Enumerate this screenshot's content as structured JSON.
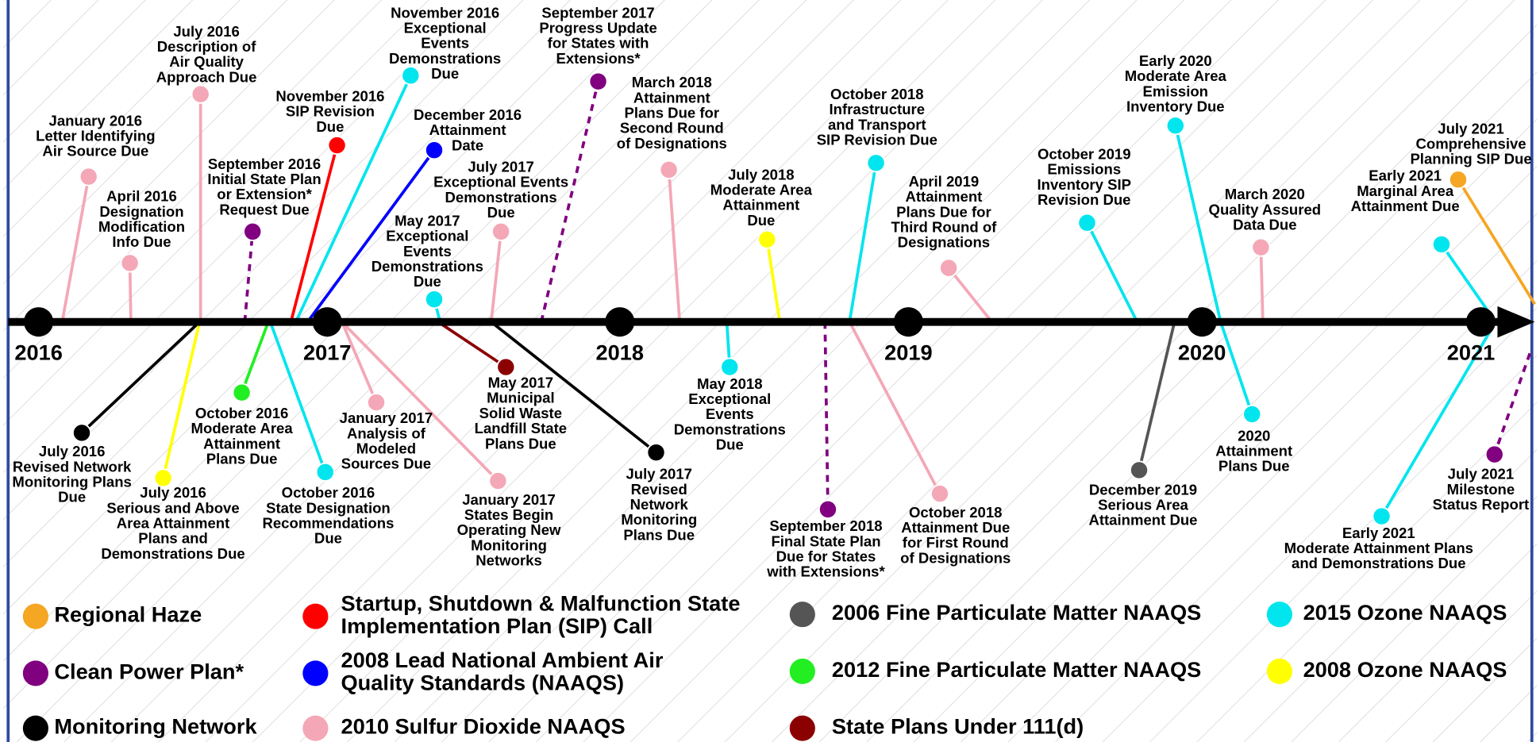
{
  "years": [
    "2016",
    "2017",
    "2018",
    "2019",
    "2020",
    "2021"
  ],
  "events": [
    {
      "lines": [
        "January 2016",
        "Letter Identifying",
        "Air Source Due"
      ],
      "color": "#f4a7b6"
    },
    {
      "lines": [
        "April 2016",
        "Designation",
        "Modification",
        "Info Due"
      ],
      "color": "#f4a7b6"
    },
    {
      "lines": [
        "July 2016",
        "Description of",
        "Air Quality",
        "Approach Due"
      ],
      "color": "#f4a7b6"
    },
    {
      "lines": [
        "September 2016",
        "Initial State Plan",
        "or Extension*",
        "Request Due"
      ],
      "color": "#800080"
    },
    {
      "lines": [
        "November 2016",
        "SIP Revision",
        "Due"
      ],
      "color": "#ff0000"
    },
    {
      "lines": [
        "November 2016",
        "Exceptional",
        "Events",
        "Demonstrations",
        "Due"
      ],
      "color": "#00e5ee"
    },
    {
      "lines": [
        "December 2016",
        "Attainment",
        "Date"
      ],
      "color": "#0000ff"
    },
    {
      "lines": [
        "May 2017",
        "Exceptional",
        "Events",
        "Demonstrations",
        "Due"
      ],
      "color": "#00e5ee"
    },
    {
      "lines": [
        "July 2017",
        "Exceptional Events",
        "Demonstrations",
        "Due"
      ],
      "color": "#f4a7b6"
    },
    {
      "lines": [
        "September 2017",
        "Progress Update",
        "for States with",
        "Extensions*"
      ],
      "color": "#800080"
    },
    {
      "lines": [
        "March 2018",
        "Attainment",
        "Plans Due for",
        "Second Round",
        "of Designations"
      ],
      "color": "#f4a7b6"
    },
    {
      "lines": [
        "July 2018",
        "Moderate Area",
        "Attainment",
        "Due"
      ],
      "color": "#ffff00"
    },
    {
      "lines": [
        "October 2018",
        "Infrastructure",
        "and Transport",
        "SIP Revision Due"
      ],
      "color": "#00e5ee"
    },
    {
      "lines": [
        "April 2019",
        "Attainment",
        "Plans Due for",
        "Third Round of",
        "Designations"
      ],
      "color": "#f4a7b6"
    },
    {
      "lines": [
        "October 2019",
        "Emissions",
        "Inventory SIP",
        "Revision Due"
      ],
      "color": "#00e5ee"
    },
    {
      "lines": [
        "Early 2020",
        "Moderate Area",
        "Emission",
        "Inventory Due"
      ],
      "color": "#00e5ee"
    },
    {
      "lines": [
        "March 2020",
        "Quality Assured",
        "Data Due"
      ],
      "color": "#f4a7b6"
    },
    {
      "lines": [
        "Early 2021",
        "Marginal Area",
        "Attainment Due"
      ],
      "color": "#00e5ee"
    },
    {
      "lines": [
        "July 2021",
        "Comprehensive",
        "Planning SIP Due"
      ],
      "color": "#f5a623"
    },
    {
      "lines": [
        "July 2016",
        "Revised Network",
        "Monitoring Plans",
        "Due"
      ],
      "color": "#000000"
    },
    {
      "lines": [
        "July 2016",
        "Serious and Above",
        "Area Attainment",
        "Plans and",
        "Demonstrations Due"
      ],
      "color": "#ffff00"
    },
    {
      "lines": [
        "October 2016",
        "Moderate Area",
        "Attainment",
        "Plans Due"
      ],
      "color": "#22ee22"
    },
    {
      "lines": [
        "October 2016",
        "State Designation",
        "Recommendations",
        "Due"
      ],
      "color": "#00e5ee"
    },
    {
      "lines": [
        "January 2017",
        "Analysis of",
        "Modeled",
        "Sources Due"
      ],
      "color": "#f4a7b6"
    },
    {
      "lines": [
        "January 2017",
        "States Begin",
        "Operating New",
        "Monitoring",
        "Networks"
      ],
      "color": "#f4a7b6"
    },
    {
      "lines": [
        "May 2017",
        "Municipal",
        "Solid Waste",
        "Landfill State",
        "Plans Due"
      ],
      "color": "#8b0000"
    },
    {
      "lines": [
        "July 2017",
        "Revised",
        "Network",
        "Monitoring",
        "Plans Due"
      ],
      "color": "#000000"
    },
    {
      "lines": [
        "May 2018",
        "Exceptional",
        "Events",
        "Demonstrations",
        "Due"
      ],
      "color": "#00e5ee"
    },
    {
      "lines": [
        "September 2018",
        "Final State Plan",
        "Due for States",
        "with Extensions*"
      ],
      "color": "#800080"
    },
    {
      "lines": [
        "October 2018",
        "Attainment Due",
        "for First Round",
        "of Designations"
      ],
      "color": "#f4a7b6"
    },
    {
      "lines": [
        "December 2019",
        "Serious Area",
        "Attainment Due"
      ],
      "color": "#555555"
    },
    {
      "lines": [
        "2020",
        "Attainment",
        "Plans Due"
      ],
      "color": "#00e5ee"
    },
    {
      "lines": [
        "Early 2021",
        "Moderate Attainment Plans",
        "and Demonstrations Due"
      ],
      "color": "#00e5ee"
    },
    {
      "lines": [
        "July 2021",
        "Milestone",
        "Status Report"
      ],
      "color": "#800080"
    }
  ],
  "legend": [
    {
      "lines": [
        "Regional Haze"
      ],
      "color": "#f5a623"
    },
    {
      "lines": [
        "Startup, Shutdown & Malfunction State",
        "Implementation Plan (SIP) Call"
      ],
      "color": "#ff0000"
    },
    {
      "lines": [
        "2006 Fine Particulate Matter NAAQS"
      ],
      "color": "#555555"
    },
    {
      "lines": [
        "2015 Ozone NAAQS"
      ],
      "color": "#00e5ee"
    },
    {
      "lines": [
        "Clean Power Plan*"
      ],
      "color": "#800080"
    },
    {
      "lines": [
        "2008 Lead National Ambient Air",
        "Quality Standards (NAAQS)"
      ],
      "color": "#0000ff"
    },
    {
      "lines": [
        "2012 Fine Particulate Matter NAAQS"
      ],
      "color": "#22ee22"
    },
    {
      "lines": [
        "2008 Ozone NAAQS"
      ],
      "color": "#ffff00"
    },
    {
      "lines": [
        "Monitoring Network"
      ],
      "color": "#000000"
    },
    {
      "lines": [
        "2010 Sulfur Dioxide NAAQS"
      ],
      "color": "#f4a7b6"
    },
    {
      "lines": [
        "State Plans Under 111(d)"
      ],
      "color": "#8b0000"
    }
  ]
}
